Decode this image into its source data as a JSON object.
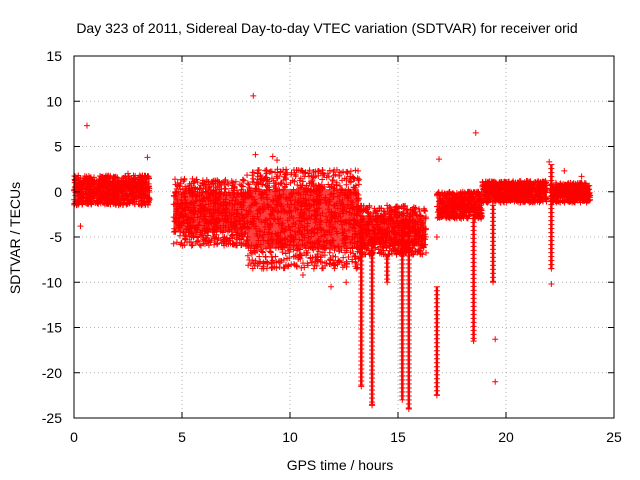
{
  "chart_data": {
    "type": "scatter",
    "title": "Day 323 of 2011, Sidereal Day-to-day VTEC variation (SDTVAR) for receiver orid",
    "xlabel": "GPS time / hours",
    "ylabel": "SDTVAR / TECUs",
    "xlim": [
      0,
      25
    ],
    "ylim": [
      -25,
      15
    ],
    "xticks": [
      0,
      5,
      10,
      15,
      20,
      25
    ],
    "yticks": [
      -25,
      -20,
      -15,
      -10,
      -5,
      0,
      5,
      10,
      15
    ],
    "xtick_labels": [
      "0",
      "5",
      "10",
      "15",
      "20",
      "25"
    ],
    "ytick_labels": [
      "-25",
      "-20",
      "-15",
      "-10",
      "-5",
      "0",
      "5",
      "10",
      "15"
    ],
    "grid": true,
    "marker": "+",
    "series": [
      {
        "name": "SDTVAR",
        "color": "#ff0000",
        "bands": [
          {
            "x_start": 0.0,
            "x_end": 3.5,
            "y_low": -1.5,
            "y_high": 1.8
          },
          {
            "x_start": 4.6,
            "x_end": 8.0,
            "y_low": -6.0,
            "y_high": 1.5
          },
          {
            "x_start": 8.0,
            "x_end": 13.2,
            "y_low": -8.5,
            "y_high": 2.5
          },
          {
            "x_start": 13.2,
            "x_end": 16.3,
            "y_low": -7.0,
            "y_high": -1.5
          },
          {
            "x_start": 16.8,
            "x_end": 18.9,
            "y_low": -3.0,
            "y_high": 0.0
          },
          {
            "x_start": 18.9,
            "x_end": 21.9,
            "y_low": -1.2,
            "y_high": 1.2
          },
          {
            "x_start": 22.1,
            "x_end": 23.9,
            "y_low": -1.2,
            "y_high": 1.0
          }
        ],
        "spikes": [
          {
            "x": 13.3,
            "y_top": -5.0,
            "y_bottom": -21.5
          },
          {
            "x": 13.8,
            "y_top": -6.0,
            "y_bottom": -23.5
          },
          {
            "x": 14.5,
            "y_top": -7.0,
            "y_bottom": -10.0
          },
          {
            "x": 15.2,
            "y_top": -4.0,
            "y_bottom": -23.0
          },
          {
            "x": 15.5,
            "y_top": -4.0,
            "y_bottom": -24.0
          },
          {
            "x": 16.8,
            "y_top": -10.5,
            "y_bottom": -22.5
          },
          {
            "x": 18.5,
            "y_top": -2.5,
            "y_bottom": -16.5
          },
          {
            "x": 19.4,
            "y_top": -1.5,
            "y_bottom": -10.0
          },
          {
            "x": 22.1,
            "y_top": 3.0,
            "y_bottom": -8.5
          }
        ],
        "outliers": [
          {
            "x": 0.6,
            "y": 7.3
          },
          {
            "x": 0.3,
            "y": -3.8
          },
          {
            "x": 3.4,
            "y": 3.8
          },
          {
            "x": 2.5,
            "y": 2.0
          },
          {
            "x": 8.3,
            "y": 10.6
          },
          {
            "x": 8.4,
            "y": 4.1
          },
          {
            "x": 9.2,
            "y": 3.9
          },
          {
            "x": 9.4,
            "y": 3.5
          },
          {
            "x": 10.6,
            "y": -9.2
          },
          {
            "x": 11.9,
            "y": -10.5
          },
          {
            "x": 12.6,
            "y": -10.0
          },
          {
            "x": 13.8,
            "y": -23.6
          },
          {
            "x": 16.9,
            "y": 3.6
          },
          {
            "x": 16.8,
            "y": -5.0
          },
          {
            "x": 18.6,
            "y": 6.5
          },
          {
            "x": 19.5,
            "y": -16.3
          },
          {
            "x": 19.5,
            "y": -21.0
          },
          {
            "x": 22.1,
            "y": -10.2
          },
          {
            "x": 22.0,
            "y": 3.3
          },
          {
            "x": 22.7,
            "y": 2.3
          },
          {
            "x": 23.5,
            "y": 1.7
          }
        ]
      }
    ]
  }
}
